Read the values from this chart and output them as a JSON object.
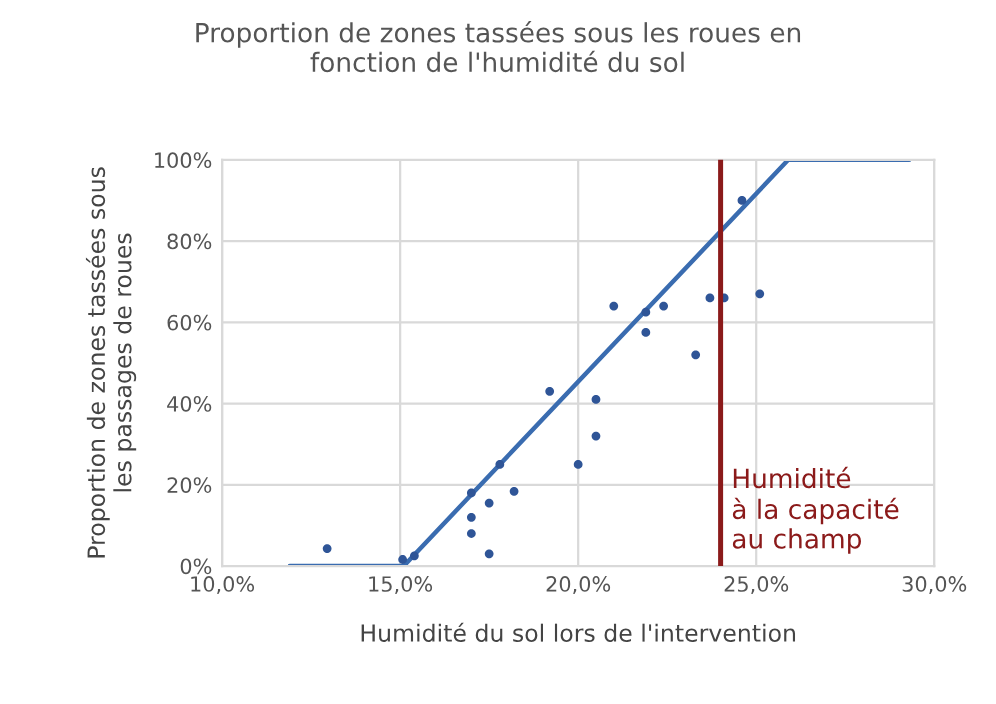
{
  "chart_data": {
    "type": "scatter",
    "title": "Proportion de zones tassées sous les roues en\nfonction de l'humidité du sol",
    "xlabel": "Humidité du sol lors de l'intervention",
    "ylabel": "Proportion de zones tassées sous\nles passages de roues",
    "series": [
      {
        "color": "#2f5597",
        "marker": "circle",
        "x": [
          12.95,
          15.07,
          15.4,
          17.0,
          17.0,
          17.0,
          17.5,
          17.5,
          17.8,
          18.2,
          19.2,
          20.0,
          20.5,
          20.5,
          21.0,
          21.9,
          21.9,
          22.4,
          23.3,
          23.7,
          24.1,
          24.6,
          25.1
        ],
        "values": [
          4.3,
          1.6,
          2.5,
          18,
          12,
          8,
          15.5,
          3,
          25,
          18.4,
          43,
          25,
          41,
          32,
          64,
          62.5,
          57.5,
          64,
          52,
          66,
          66,
          90,
          67
        ]
      },
      {
        "type": "line",
        "color": "#3a6cb0",
        "marker": "none",
        "x": [
          11.9,
          15.1,
          25.9,
          29.3
        ],
        "values": [
          0,
          0,
          100,
          100
        ]
      }
    ],
    "xlim": [
      10,
      30
    ],
    "xticks": [
      {
        "value": 10,
        "label": "10,0%"
      },
      {
        "value": 15,
        "label": "15,0%"
      },
      {
        "value": 20,
        "label": "20,0%"
      },
      {
        "value": 25,
        "label": "25,0%"
      },
      {
        "value": 30,
        "label": "30,0%"
      }
    ],
    "ylim": [
      0,
      100
    ],
    "yticks": [
      {
        "value": 0,
        "label": "0%"
      },
      {
        "value": 20,
        "label": "20%"
      },
      {
        "value": 40,
        "label": "40%"
      },
      {
        "value": 60,
        "label": "60%"
      },
      {
        "value": 80,
        "label": "80%"
      },
      {
        "value": 100,
        "label": "100%"
      }
    ],
    "grid": true,
    "legend": false,
    "ref_lines": [
      {
        "axis": "x",
        "value": 24.0,
        "label": "Humidité\nà la capacité\nau champ",
        "color": "#8b1a1a",
        "line_style": "solid"
      }
    ]
  }
}
